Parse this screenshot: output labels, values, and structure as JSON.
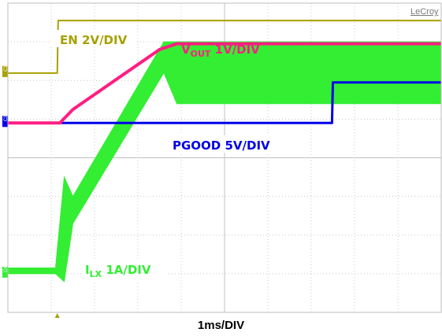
{
  "chart_data": {
    "type": "line",
    "title": "",
    "xlabel": "1ms/DIV",
    "ylabel": "",
    "brand": "LeCroy",
    "grid": true,
    "x_divisions": 10,
    "y_divisions": 8,
    "xlim": [
      0,
      10
    ],
    "ylim": [
      0,
      8
    ],
    "trigger_marker_div": 1.14,
    "series": [
      {
        "id": "en",
        "name": "EN 2V/DIV",
        "name_main": "EN 2V/DIV",
        "name_sub": "",
        "channel_marker": "C1",
        "color": "#a8a000",
        "x": [
          0,
          1.14,
          1.16,
          10
        ],
        "y": [
          6.19,
          6.19,
          7.55,
          7.55
        ]
      },
      {
        "id": "vout",
        "name": "VOUT 1V/DIV",
        "name_main": "V",
        "name_sub": "OUT",
        "name_rest": " 1V/DIV",
        "channel_marker": "C2",
        "color": "#ff1e82",
        "x": [
          0,
          1.2,
          1.5,
          3.5,
          3.9,
          10
        ],
        "y": [
          4.9,
          4.9,
          5.25,
          6.8,
          6.95,
          6.95
        ]
      },
      {
        "id": "pgood",
        "name": "PGOOD 5V/DIV",
        "name_main": "PGOOD 5V/DIV",
        "name_sub": "",
        "channel_marker": "C3",
        "color": "#0000e8",
        "x": [
          0,
          7.48,
          7.5,
          10
        ],
        "y": [
          4.9,
          4.9,
          5.95,
          5.95
        ]
      },
      {
        "id": "ilx",
        "name": "ILX 1A/DIV",
        "name_main": "I",
        "name_sub": "LX",
        "name_rest": " 1A/DIV",
        "channel_marker": "C4",
        "color": "#33ee33",
        "x": [
          0,
          1.1,
          1.3,
          1.5,
          3.6,
          3.9,
          10
        ],
        "y_upper": [
          1.15,
          1.15,
          3.5,
          3.0,
          7.0,
          7.0,
          7.0
        ],
        "y_lower": [
          1.0,
          1.0,
          0.8,
          2.3,
          6.2,
          5.4,
          5.4
        ]
      }
    ]
  }
}
